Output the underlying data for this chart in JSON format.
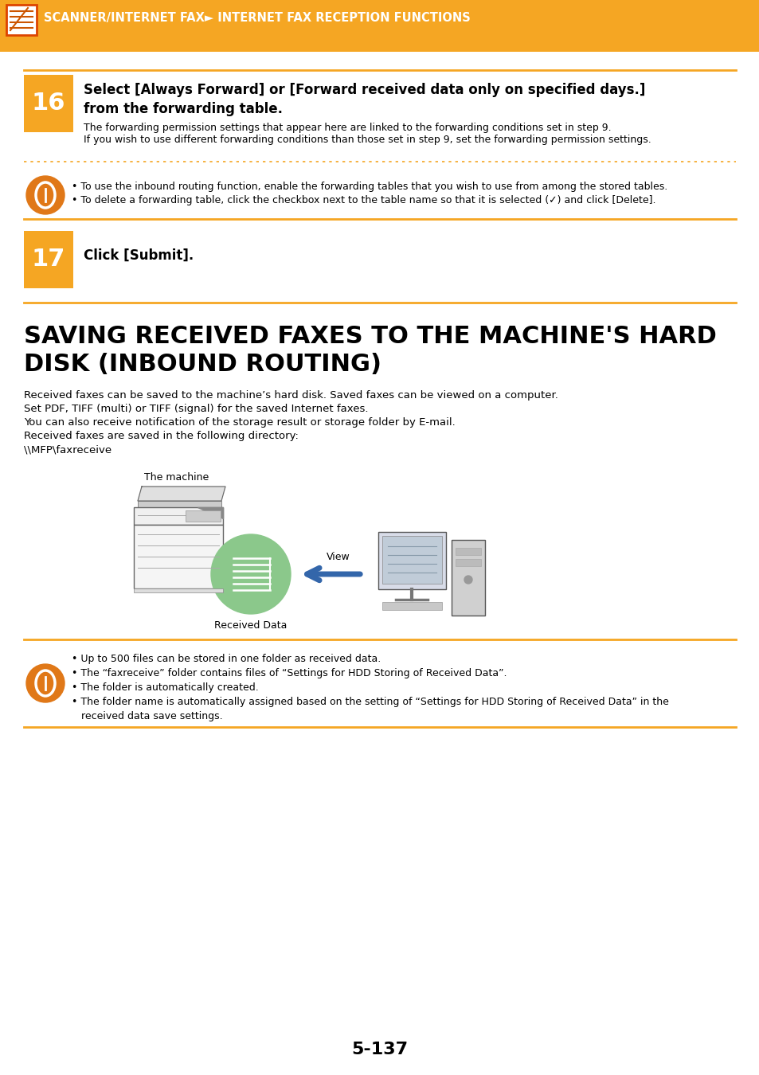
{
  "bg_color": "#ffffff",
  "header_bg": "#f5a623",
  "header_text": "SCANNER/INTERNET FAX► INTERNET FAX RECEPTION FUNCTIONS",
  "header_text_color": "#ffffff",
  "step16_num": "16",
  "step16_title_1": "Select [Always Forward] or [Forward received data only on specified days.]",
  "step16_title_2": "from the forwarding table.",
  "step16_body1": "The forwarding permission settings that appear here are linked to the forwarding conditions set in step 9.",
  "step16_body2": "If you wish to use different forwarding conditions than those set in step 9, set the forwarding permission settings.",
  "step16_note1": "• To use the inbound routing function, enable the forwarding tables that you wish to use from among the stored tables.",
  "step16_note2": "• To delete a forwarding table, click the checkbox next to the table name so that it is selected (✓) and click [Delete].",
  "step17_num": "17",
  "step17_title": "Click [Submit].",
  "section_title_line1": "SAVING RECEIVED FAXES TO THE MACHINE'S HARD",
  "section_title_line2": "DISK (INBOUND ROUTING)",
  "section_body_lines": [
    "Received faxes can be saved to the machine’s hard disk. Saved faxes can be viewed on a computer.",
    "Set PDF, TIFF (multi) or TIFF (signal) for the saved Internet faxes.",
    "You can also receive notification of the storage result or storage folder by E-mail.",
    "Received faxes are saved in the following directory:",
    "\\\\MFP\\faxreceive"
  ],
  "diagram_label_machine": "The machine",
  "diagram_label_received": "Received Data",
  "diagram_label_view": "View",
  "note_bullet1": "• Up to 500 files can be stored in one folder as received data.",
  "note_bullet2": "• The “faxreceive” folder contains files of “Settings for HDD Storing of Received Data”.",
  "note_bullet3": "• The folder is automatically created.",
  "note_bullet4a": "• The folder name is automatically assigned based on the setting of “Settings for HDD Storing of Received Data” in the",
  "note_bullet4b": "   received data save settings.",
  "page_num": "5-137",
  "orange_color": "#f5a623",
  "dark_orange": "#e07818",
  "step_box_color": "#f5a623",
  "icon_border_color": "#dd4400"
}
